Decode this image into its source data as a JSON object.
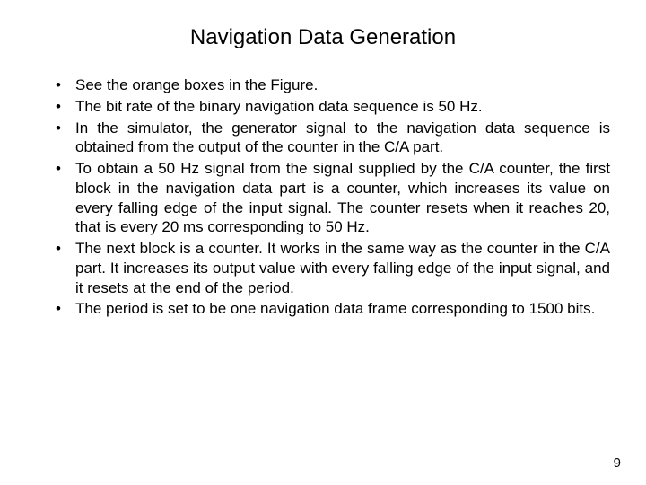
{
  "title": "Navigation Data Generation",
  "bullets": [
    "See the orange boxes in the Figure.",
    "The bit rate of the binary navigation data sequence is 50 Hz.",
    "In the simulator, the generator signal to the navigation data sequence is obtained from the output of the counter in the C/A part.",
    "To obtain a 50 Hz signal from the signal supplied by the C/A counter, the first block in the navigation data part is a counter, which increases its value on every falling edge of the input signal. The counter resets when it reaches 20, that is every 20 ms corresponding to 50 Hz.",
    "The next block is a counter. It works in the same way as the counter in the C/A part. It increases its output value with every falling edge of the input signal, and it resets at the end of the period.",
    "The period is set to be one navigation data frame corresponding to 1500 bits."
  ],
  "page_number": "9",
  "colors": {
    "background": "#ffffff",
    "text": "#000000"
  },
  "typography": {
    "title_fontsize": 24,
    "body_fontsize": 17,
    "page_number_fontsize": 15,
    "font_family": "Arial"
  }
}
